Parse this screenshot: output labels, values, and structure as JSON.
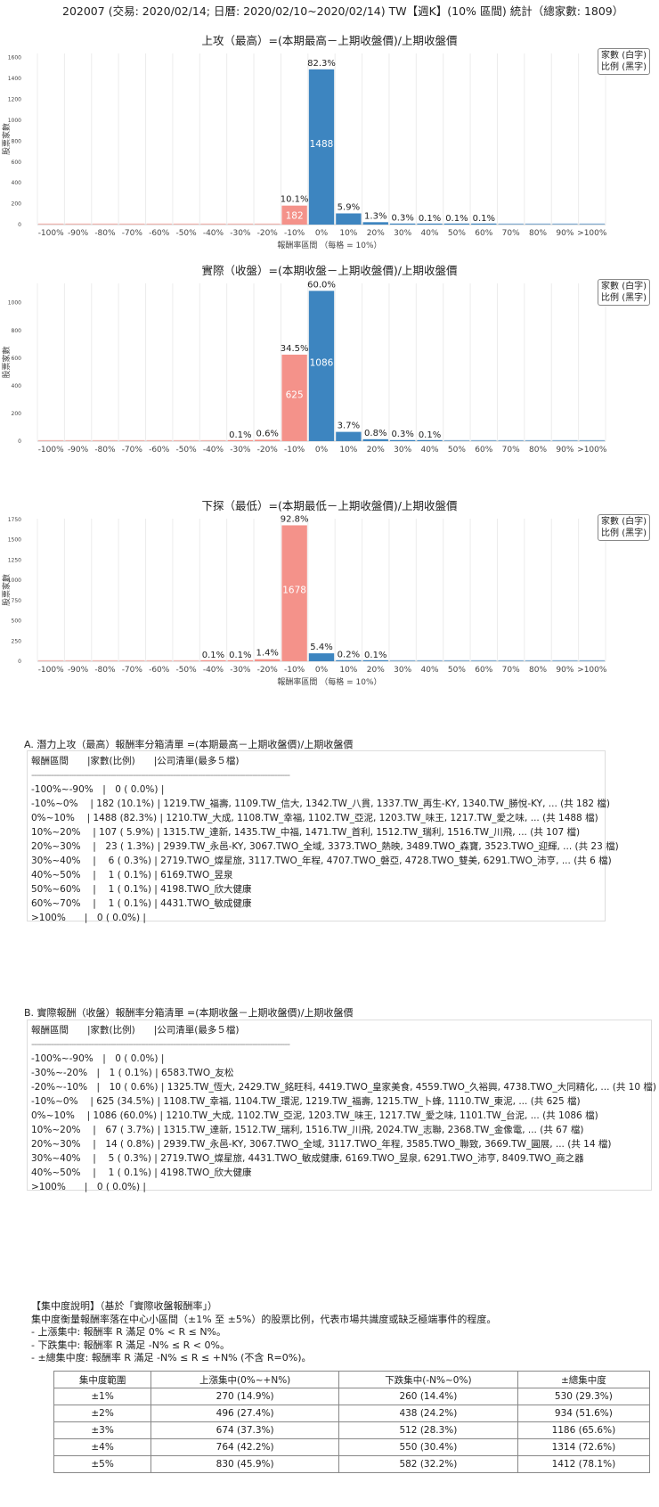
{
  "header": "202007 (交易: 2020/02/14; 日曆: 2020/02/10~2020/02/14) TW【週K】(10% 區間) 統計（總家數: 1809）",
  "legend": {
    "line1": "家數 (白字)",
    "line2": "比例 (黑字)"
  },
  "colors": {
    "negative": "#f4928a",
    "positive": "#3d85c0"
  },
  "chart_data": [
    {
      "type": "bar",
      "title": "上攻（最高）=(本期最高－上期收盤價)/上期收盤價",
      "xlabel": "報酬率區間 （每格 = 10%）",
      "ylabel": "股票家數",
      "categories": [
        "-100%",
        "-90%",
        "-80%",
        "-70%",
        "-60%",
        "-50%",
        "-40%",
        "-30%",
        "-20%",
        "-10%",
        "0%",
        "10%",
        "20%",
        "30%",
        "40%",
        "50%",
        "60%",
        "70%",
        "80%",
        "90%",
        ">100%"
      ],
      "values": [
        0,
        0,
        0,
        0,
        0,
        0,
        0,
        0,
        0,
        182,
        1488,
        107,
        23,
        6,
        1,
        1,
        1,
        0,
        0,
        0,
        0
      ],
      "percent_labels": [
        "",
        "",
        "",
        "",
        "",
        "",
        "",
        "",
        "",
        "10.1%",
        "82.3%",
        "5.9%",
        "1.3%",
        "0.3%",
        "0.1%",
        "0.1%",
        "0.1%",
        "",
        "",
        "",
        ""
      ],
      "yticks": [
        0,
        200,
        400,
        600,
        800,
        1000,
        1200,
        1400,
        1600
      ],
      "ylim": [
        0,
        1640
      ]
    },
    {
      "type": "bar",
      "title": "實際（收盤）=(本期收盤－上期收盤價)/上期收盤價",
      "xlabel": "",
      "ylabel": "股票家數",
      "categories": [
        "-100%",
        "-90%",
        "-80%",
        "-70%",
        "-60%",
        "-50%",
        "-40%",
        "-30%",
        "-20%",
        "-10%",
        "0%",
        "10%",
        "20%",
        "30%",
        "40%",
        "50%",
        "60%",
        "70%",
        "80%",
        "90%",
        ">100%"
      ],
      "values": [
        0,
        0,
        0,
        0,
        0,
        0,
        0,
        1,
        10,
        625,
        1086,
        67,
        14,
        5,
        1,
        0,
        0,
        0,
        0,
        0,
        0
      ],
      "percent_labels": [
        "",
        "",
        "",
        "",
        "",
        "",
        "",
        "0.1%",
        "0.6%",
        "34.5%",
        "60.0%",
        "3.7%",
        "0.8%",
        "0.3%",
        "0.1%",
        "",
        "",
        "",
        "",
        "",
        ""
      ],
      "yticks": [
        0,
        200,
        400,
        600,
        800,
        1000
      ],
      "ylim": [
        0,
        1140
      ]
    },
    {
      "type": "bar",
      "title": "下探（最低）=(本期最低－上期收盤價)/上期收盤價",
      "xlabel": "報酬率區間 （每格 = 10%）",
      "ylabel": "股票家數",
      "categories": [
        "-100%",
        "-90%",
        "-80%",
        "-70%",
        "-60%",
        "-50%",
        "-40%",
        "-30%",
        "-20%",
        "-10%",
        "0%",
        "10%",
        "20%",
        "30%",
        "40%",
        "50%",
        "60%",
        "70%",
        "80%",
        "90%",
        ">100%"
      ],
      "values": [
        0,
        0,
        0,
        0,
        0,
        0,
        1,
        2,
        25,
        1678,
        98,
        4,
        1,
        0,
        0,
        0,
        0,
        0,
        0,
        0,
        0
      ],
      "percent_labels": [
        "",
        "",
        "",
        "",
        "",
        "",
        "0.1%",
        "0.1%",
        "1.4%",
        "92.8%",
        "5.4%",
        "0.2%",
        "0.1%",
        "",
        "",
        "",
        "",
        "",
        "",
        "",
        ""
      ],
      "yticks": [
        0,
        250,
        500,
        750,
        1000,
        1250,
        1500,
        1750
      ],
      "ylim": [
        0,
        1760
      ]
    }
  ],
  "section_a": {
    "title": "A. 潛力上攻（最高）報酬率分箱清單 =(本期最高－上期收盤價)/上期收盤價",
    "header": "報酬區間　　|家數(比例)　　|公司清單(最多５檔)",
    "divider": "--------------------------------------------------------------------------------------------------------",
    "rows": [
      "-100%~-90%　|　0 ( 0.0%) |",
      "-10%~0%　 | 182 (10.1%) | 1219.TW_福壽, 1109.TW_信大, 1342.TW_八貫, 1337.TW_再生-KY, 1340.TW_勝悅-KY, ... (共 182 檔)",
      "0%~10%　 | 1488 (82.3%) | 1210.TW_大成, 1108.TW_幸福, 1102.TW_亞泥, 1203.TW_味王, 1217.TW_愛之味, ... (共 1488 檔)",
      "10%~20%　 | 107 ( 5.9%) | 1315.TW_達新, 1435.TW_中福, 1471.TW_首利, 1512.TW_瑞利, 1516.TW_川飛, ... (共 107 檔)",
      "20%~30%　 |　23 ( 1.3%) | 2939.TW_永邑-KY, 3067.TWO_全域, 3373.TWO_熱映, 3489.TWO_森寶, 3523.TWO_迎輝, ... (共 23 檔)",
      "30%~40%　 |　 6 ( 0.3%) | 2719.TWO_燦星旅, 3117.TWO_年程, 4707.TWO_磐亞, 4728.TWO_雙美, 6291.TWO_沛亨, ... (共 6 檔)",
      "40%~50%　 |　 1 ( 0.1%) | 6169.TWO_昱泉",
      "50%~60%　 |　 1 ( 0.1%) | 4198.TWO_欣大健康",
      "60%~70%　 |　 1 ( 0.1%) | 4431.TWO_敏成健康",
      ">100%　　|　0 ( 0.0%) |"
    ]
  },
  "section_b": {
    "title": "B. 實際報酬（收盤）報酬率分箱清單 =(本期收盤－上期收盤價)/上期收盤價",
    "header": "報酬區間　　|家數(比例)　　|公司清單(最多５檔)",
    "divider": "--------------------------------------------------------------------------------------------------------",
    "rows": [
      "-100%~-90%　|　0 ( 0.0%) |",
      "-30%~-20%　|　1 ( 0.1%) | 6583.TWO_友松",
      "-20%~-10%　|　10 ( 0.6%) | 1325.TW_恆大, 2429.TW_銘旺科, 4419.TWO_皇家美食, 4559.TWO_久裕興, 4738.TWO_大同精化, ... (共 10 檔)",
      "-10%~0%　 | 625 (34.5%) | 1108.TW_幸福, 1104.TW_環泥, 1219.TW_福壽, 1215.TW_卜蜂, 1110.TW_東泥, ... (共 625 檔)",
      "0%~10%　 | 1086 (60.0%) | 1210.TW_大成, 1102.TW_亞泥, 1203.TW_味王, 1217.TW_愛之味, 1101.TW_台泥, ... (共 1086 檔)",
      "10%~20%　 |　67 ( 3.7%) | 1315.TW_達新, 1512.TW_瑞利, 1516.TW_川飛, 2024.TW_志聯, 2368.TW_金像電, ... (共 67 檔)",
      "20%~30%　 |　14 ( 0.8%) | 2939.TW_永邑-KY, 3067.TWO_全域, 3117.TWO_年程, 3585.TWO_聯致, 3669.TW_圓展, ... (共 14 檔)",
      "30%~40%　 |　 5 ( 0.3%) | 2719.TWO_燦星旅, 4431.TWO_敏成健康, 6169.TWO_昱泉, 6291.TWO_沛亨, 8409.TWO_商之器",
      "40%~50%　 |　 1 ( 0.1%) | 4198.TWO_欣大健康",
      ">100%　　|　0 ( 0.0%) |"
    ]
  },
  "note": {
    "lines": [
      "【集中度說明】（基於「實際收盤報酬率」）",
      "集中度衡量報酬率落在中心小區間（±1% 至 ±5%）的股票比例，代表市場共識度或缺乏極端事件的程度。",
      " - 上漲集中: 報酬率 R 滿足 0% < R ≤ N%。",
      " - 下跌集中: 報酬率 R 滿足 -N% ≤ R < 0%。",
      " - ±總集中度: 報酬率 R 滿足 -N% ≤ R ≤ +N% (不含 R=0%)。"
    ]
  },
  "concentration_table": {
    "headers": [
      "集中度範圍",
      "上漲集中(0%~+N%)",
      "下跌集中(-N%~0%)",
      "±總集中度"
    ],
    "rows": [
      [
        "±1%",
        "270 (14.9%)",
        "260 (14.4%)",
        "530 (29.3%)"
      ],
      [
        "±2%",
        "496 (27.4%)",
        "438 (24.2%)",
        "934 (51.6%)"
      ],
      [
        "±3%",
        "674 (37.3%)",
        "512 (28.3%)",
        "1186 (65.6%)"
      ],
      [
        "±4%",
        "764 (42.2%)",
        "550 (30.4%)",
        "1314 (72.6%)"
      ],
      [
        "±5%",
        "830 (45.9%)",
        "582 (32.2%)",
        "1412 (78.1%)"
      ]
    ]
  }
}
